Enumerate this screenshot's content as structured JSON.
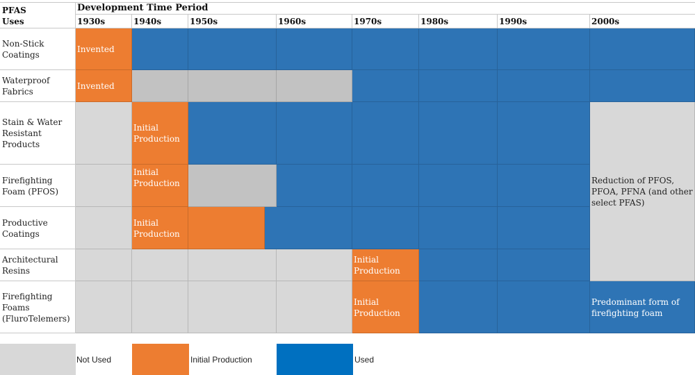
{
  "colors": {
    "not_used": "#d8d8d8",
    "not_used_dark": "#c2c2c2",
    "initial": "#ed7d31",
    "used": "#2e74b5",
    "legend_used": "#0070c0"
  },
  "chart_data": {
    "type": "table",
    "title": "Development Time Period",
    "row_header": "PFAS Uses",
    "categories": [
      "1930s",
      "1940s",
      "1950s",
      "1960s",
      "1970s",
      "1980s",
      "1990s",
      "2000s"
    ],
    "series": [
      {
        "name": "Non-Stick Coatings",
        "states": [
          "initial",
          "used",
          "used",
          "used",
          "used",
          "used",
          "used",
          "used"
        ],
        "annotations": [
          {
            "decade": "1930s",
            "text": "Invented"
          }
        ]
      },
      {
        "name": "Waterproof Fabrics",
        "states": [
          "initial",
          "not_used",
          "not_used",
          "not_used",
          "used",
          "used",
          "used",
          "used"
        ],
        "annotations": [
          {
            "decade": "1930s",
            "text": "Invented"
          }
        ]
      },
      {
        "name": "Stain & Water Resistant Products",
        "states": [
          "not_used",
          "initial",
          "used",
          "used",
          "used",
          "used",
          "used",
          "reduction"
        ],
        "annotations": [
          {
            "decade": "1940s",
            "text": "Initial Production"
          }
        ]
      },
      {
        "name": "Firefighting Foam (PFOS)",
        "states": [
          "not_used",
          "initial",
          "not_used",
          "used",
          "used",
          "used",
          "used",
          "reduction"
        ],
        "annotations": [
          {
            "decade": "1940s",
            "text": "Initial Production"
          }
        ]
      },
      {
        "name": "Productive Coatings",
        "states": [
          "not_used",
          "initial",
          "initial",
          "used",
          "used",
          "used",
          "used",
          "reduction"
        ],
        "annotations": [
          {
            "decade": "1940s",
            "text": "Initial Production"
          }
        ]
      },
      {
        "name": "Architectural Resins",
        "states": [
          "not_used",
          "not_used",
          "not_used",
          "not_used",
          "initial",
          "used",
          "used",
          "reduction"
        ],
        "annotations": [
          {
            "decade": "1970s",
            "text": "Initial Production"
          }
        ]
      },
      {
        "name": "Firefighting Foams (FluroTelemers)",
        "states": [
          "not_used",
          "not_used",
          "not_used",
          "not_used",
          "initial",
          "used",
          "used",
          "used"
        ],
        "annotations": [
          {
            "decade": "1970s",
            "text": "Initial Production"
          },
          {
            "decade": "2000s",
            "text": "Predominant form of firefighting foam"
          }
        ]
      }
    ],
    "reduction_note": "Reduction of PFOS, PFOA, PFNA (and other select PFAS)",
    "legend": [
      {
        "key": "not_used",
        "label": "Not Used"
      },
      {
        "key": "initial",
        "label": "Initial Production"
      },
      {
        "key": "used",
        "label": "Used"
      }
    ],
    "legend_position": "bottom"
  },
  "header": {
    "corner_line1": "PFAS",
    "corner_line2": "Uses",
    "period_title": "Development Time Period"
  },
  "rows": [
    {
      "label": "Non-Stick Coatings"
    },
    {
      "label": "Waterproof Fabrics"
    },
    {
      "label": "Stain & Water Resistant Products"
    },
    {
      "label": "Firefighting Foam (PFOS)"
    },
    {
      "label": "Productive Coatings"
    },
    {
      "label": "Architectural Resins"
    },
    {
      "label": "Firefighting Foams (FluroTelemers)"
    }
  ],
  "cell_labels": {
    "invented": "Invented",
    "initial_production": "Initial Production",
    "reduction": "Reduction of PFOS, PFOA, PFNA (and other select PFAS)",
    "predominant": "Predominant form of firefighting foam"
  },
  "legend": {
    "not_used": "Not Used",
    "initial": "Initial Production",
    "used": "Used"
  }
}
